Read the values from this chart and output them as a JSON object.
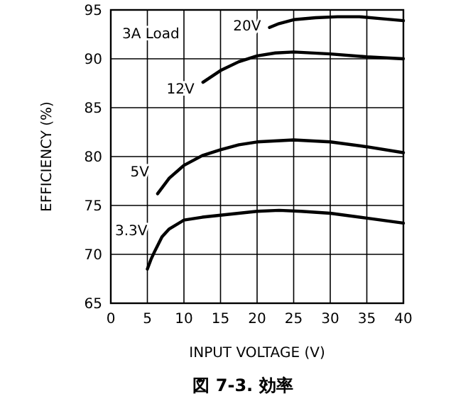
{
  "chart_data": {
    "type": "line",
    "title": "図 7-3. 効率",
    "xlabel": "INPUT VOLTAGE (V)",
    "ylabel": "EFFICIENCY (%)",
    "annotations": [
      "3A Load"
    ],
    "xlim": [
      0,
      40
    ],
    "ylim": [
      65,
      95
    ],
    "xticks": [
      0,
      5,
      10,
      15,
      20,
      25,
      30,
      35,
      40
    ],
    "yticks": [
      65,
      70,
      75,
      80,
      85,
      90,
      95
    ],
    "grid": true,
    "marker": "none",
    "line_style": "solid",
    "series": [
      {
        "name": "20V",
        "color": "#000000",
        "x": [
          21.7,
          23,
          25,
          28,
          31,
          34,
          37,
          40
        ],
        "values": [
          93.2,
          93.6,
          94.0,
          94.2,
          94.3,
          94.3,
          94.1,
          93.9
        ]
      },
      {
        "name": "12V",
        "color": "#000000",
        "x": [
          12.6,
          15,
          17.5,
          20,
          22.5,
          25,
          30,
          35,
          40
        ],
        "values": [
          87.6,
          88.8,
          89.7,
          90.3,
          90.6,
          90.7,
          90.5,
          90.2,
          90.0
        ]
      },
      {
        "name": "5V",
        "color": "#000000",
        "x": [
          6.4,
          8,
          10,
          12.5,
          15,
          17.5,
          20,
          25,
          30,
          35,
          40
        ],
        "values": [
          76.2,
          77.8,
          79.1,
          80.1,
          80.7,
          81.2,
          81.5,
          81.7,
          81.5,
          81.0,
          80.4
        ]
      },
      {
        "name": "3.3V",
        "color": "#000000",
        "x": [
          5,
          5.5,
          6,
          7,
          8,
          10,
          12.5,
          15,
          20,
          23,
          26,
          30,
          35,
          40
        ],
        "values": [
          68.5,
          69.5,
          70.3,
          71.8,
          72.6,
          73.5,
          73.8,
          74.0,
          74.4,
          74.5,
          74.4,
          74.2,
          73.7,
          73.2
        ]
      }
    ]
  }
}
